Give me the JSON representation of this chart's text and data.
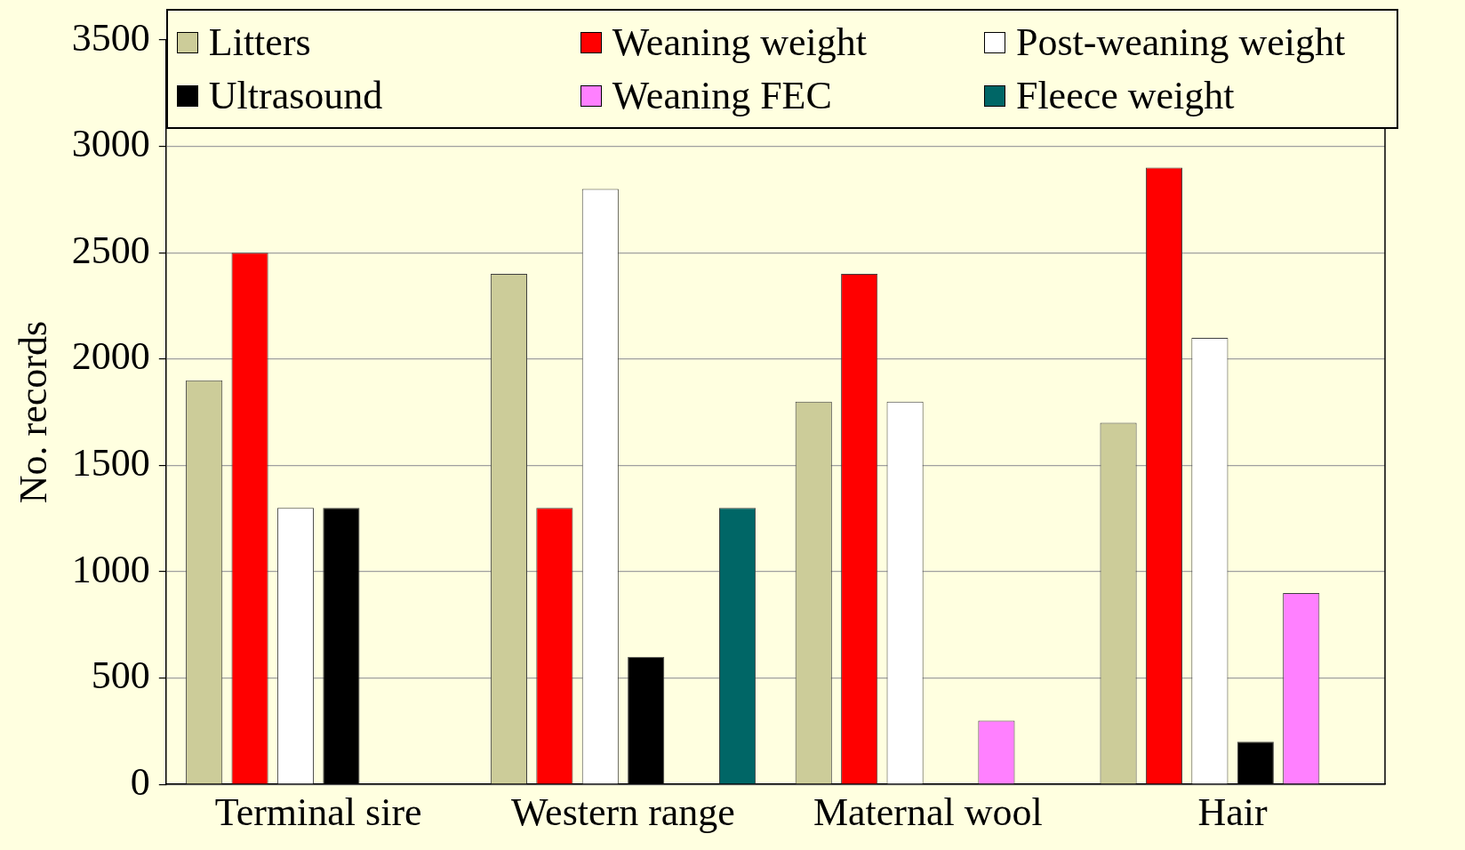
{
  "chart_data": {
    "type": "bar",
    "ylabel": "No. records",
    "categories": [
      "Terminal sire",
      "Western range",
      "Maternal wool",
      "Hair"
    ],
    "series": [
      {
        "name": "Litters",
        "color": "#cccc99",
        "values": [
          1900,
          2400,
          1800,
          1700
        ]
      },
      {
        "name": "Weaning weight",
        "color": "#ff0000",
        "values": [
          2500,
          1300,
          2400,
          2900
        ]
      },
      {
        "name": "Post-weaning weight",
        "color": "#ffffff",
        "values": [
          1300,
          2800,
          1800,
          2100
        ]
      },
      {
        "name": "Ultrasound",
        "color": "#000000",
        "values": [
          1300,
          600,
          null,
          200
        ]
      },
      {
        "name": "Weaning FEC",
        "color": "#ff80ff",
        "values": [
          null,
          null,
          300,
          900
        ]
      },
      {
        "name": "Fleece weight",
        "color": "#006666",
        "values": [
          null,
          1300,
          null,
          null
        ]
      }
    ],
    "ylim": [
      0,
      3500
    ],
    "yticks": [
      0,
      500,
      1000,
      1500,
      2000,
      2500,
      3000,
      3500
    ],
    "grid": "y",
    "legend": "top"
  }
}
